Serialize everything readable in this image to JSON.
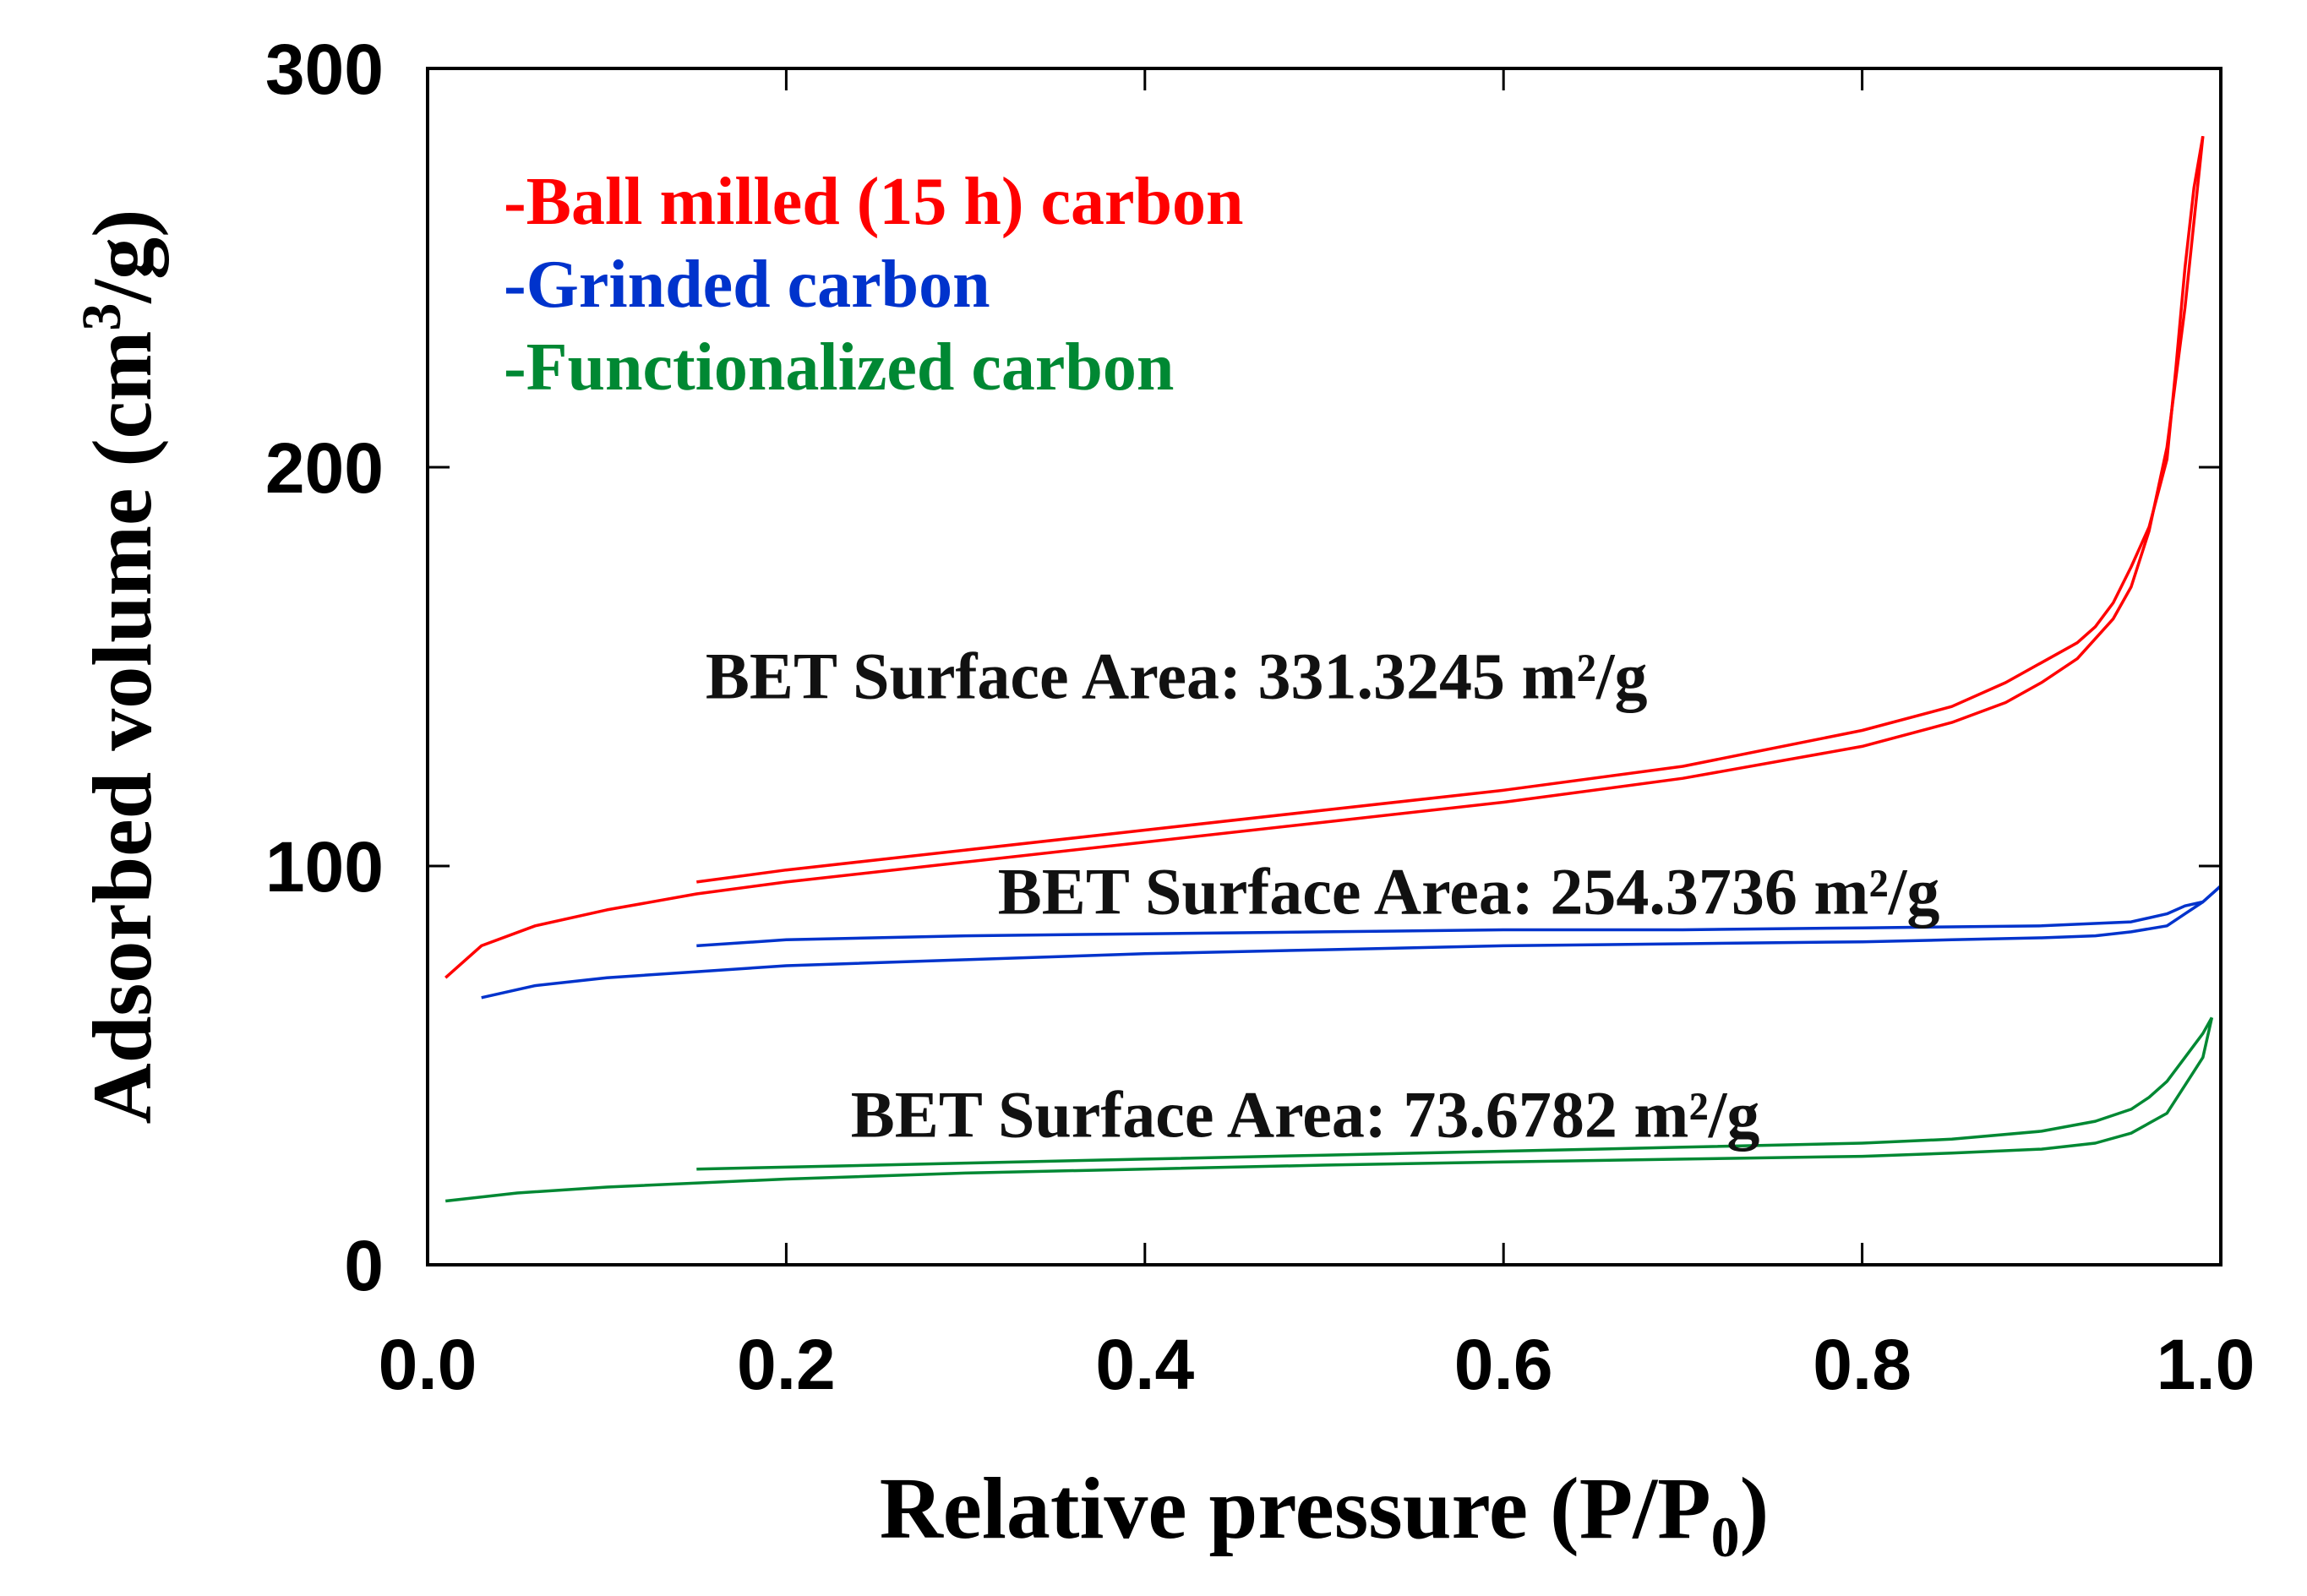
{
  "chart_data": {
    "type": "line",
    "title": "",
    "xlabel": "Relative pressure (P/P",
    "xlabel_sub": "0",
    "xlabel_end": ")",
    "ylabel": "Adsorbed volume (cm",
    "ylabel_sup": "3",
    "ylabel_end": "/g)",
    "xlim": [
      0.0,
      1.0
    ],
    "ylim": [
      0,
      300
    ],
    "xticks": [
      0.0,
      0.2,
      0.4,
      0.6,
      0.8,
      1.0
    ],
    "xtick_labels": [
      "0.0",
      "0.2",
      "0.4",
      "0.6",
      "0.8",
      "1.0"
    ],
    "yticks": [
      0,
      100,
      200,
      300
    ],
    "ytick_labels": [
      "0",
      "100",
      "200",
      "300"
    ],
    "grid": false,
    "legend": {
      "position": "top-left",
      "entries": [
        {
          "label": "-Ball milled (15 h) carbon",
          "color": "#ff0000"
        },
        {
          "label": "-Grinded carbon",
          "color": "#0033cc"
        },
        {
          "label": "-Functionalized carbon",
          "color": "#008833"
        }
      ]
    },
    "series": [
      {
        "name": "Ball milled (15 h) carbon",
        "color": "#ff0000",
        "adsorption": {
          "x": [
            0.01,
            0.03,
            0.06,
            0.1,
            0.15,
            0.2,
            0.3,
            0.4,
            0.5,
            0.6,
            0.7,
            0.8,
            0.85,
            0.88,
            0.9,
            0.92,
            0.94,
            0.95,
            0.96,
            0.97,
            0.98,
            0.99
          ],
          "y": [
            72,
            80,
            85,
            89,
            93,
            96,
            101,
            106,
            111,
            116,
            122,
            130,
            136,
            141,
            146,
            152,
            162,
            170,
            184,
            205,
            240,
            283
          ]
        },
        "desorption": {
          "x": [
            0.99,
            0.985,
            0.98,
            0.975,
            0.97,
            0.96,
            0.95,
            0.94,
            0.93,
            0.92,
            0.9,
            0.88,
            0.85,
            0.8,
            0.7,
            0.6,
            0.5,
            0.4,
            0.3,
            0.2,
            0.15
          ],
          "y": [
            283,
            270,
            250,
            225,
            202,
            185,
            175,
            166,
            160,
            156,
            151,
            146,
            140,
            134,
            125,
            119,
            114,
            109,
            104,
            99,
            96
          ]
        }
      },
      {
        "name": "Grinded carbon",
        "color": "#0033cc",
        "adsorption": {
          "x": [
            0.03,
            0.06,
            0.1,
            0.15,
            0.2,
            0.3,
            0.4,
            0.5,
            0.6,
            0.7,
            0.8,
            0.85,
            0.9,
            0.93,
            0.95,
            0.97,
            0.98,
            0.99,
            1.0
          ],
          "y": [
            67,
            70,
            72,
            73.5,
            75,
            76.5,
            78,
            79,
            80,
            80.5,
            81,
            81.5,
            82,
            82.5,
            83.5,
            85,
            88,
            91,
            95
          ]
        },
        "desorption": {
          "x": [
            1.0,
            0.99,
            0.98,
            0.97,
            0.95,
            0.9,
            0.8,
            0.7,
            0.6,
            0.5,
            0.4,
            0.3,
            0.2,
            0.15
          ],
          "y": [
            95,
            91,
            90,
            88,
            86,
            85,
            84.5,
            84,
            84,
            83.5,
            83,
            82.5,
            81.5,
            80
          ]
        }
      },
      {
        "name": "Functionalized carbon",
        "color": "#008833",
        "adsorption": {
          "x": [
            0.01,
            0.05,
            0.1,
            0.2,
            0.3,
            0.4,
            0.5,
            0.6,
            0.7,
            0.8,
            0.85,
            0.9,
            0.93,
            0.95,
            0.97,
            0.98,
            0.99,
            0.995
          ],
          "y": [
            16,
            18,
            19.5,
            21.5,
            23,
            24,
            25,
            25.8,
            26.5,
            27.2,
            28,
            29,
            30.5,
            33,
            38,
            45,
            52,
            62
          ]
        },
        "desorption": {
          "x": [
            0.995,
            0.99,
            0.98,
            0.97,
            0.96,
            0.95,
            0.93,
            0.9,
            0.85,
            0.8,
            0.7,
            0.6,
            0.5,
            0.4,
            0.3,
            0.2,
            0.15
          ],
          "y": [
            62,
            58,
            52,
            46,
            42,
            39,
            36,
            33.5,
            31.5,
            30.5,
            29.5,
            28.5,
            27.5,
            26.5,
            25.5,
            24.5,
            24
          ]
        }
      }
    ],
    "annotations": [
      {
        "text": "BET Surface Area: 331.3245 m²/g",
        "x": 0.155,
        "y": 148,
        "color": "#111111"
      },
      {
        "text": "BET Surface Area: 254.3736 m²/g",
        "x": 0.318,
        "y": 94,
        "color": "#111111"
      },
      {
        "text": "BET Surface Area: 73.6782 m²/g",
        "x": 0.236,
        "y": 38,
        "color": "#111111"
      }
    ]
  }
}
